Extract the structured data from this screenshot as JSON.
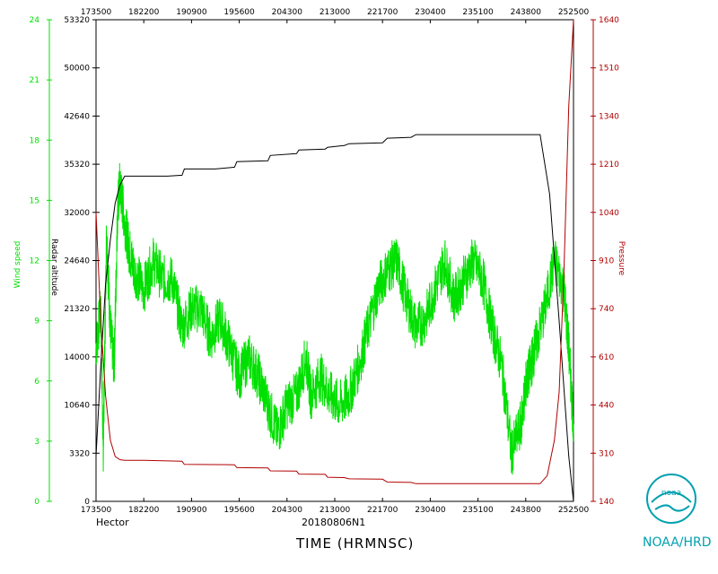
{
  "storm_name": "Hector",
  "storm_id": "20180806N1",
  "xlabel": "TIME (HRMNSC)",
  "credit": "NOAA/HRD",
  "logo_text": "noaa",
  "colors": {
    "wind": "#00e000",
    "altitude": "#000000",
    "pressure": "#b00000",
    "axis": "#000000"
  },
  "chart_data": {
    "type": "line",
    "grid": false,
    "x": {
      "ticks": [
        "173500",
        "182200",
        "190900",
        "195600",
        "204300",
        "213000",
        "221700",
        "230400",
        "235100",
        "243800",
        "252500"
      ],
      "range": [
        0,
        10
      ]
    },
    "axes": {
      "wind": {
        "label": "Wind speed",
        "range": [
          0,
          25
        ],
        "ticks": [
          "0",
          "3",
          "6",
          "9",
          "12",
          "15",
          "18",
          "21",
          "24"
        ]
      },
      "altitude": {
        "label": "Radar altitude",
        "range": [
          0,
          53320
        ],
        "ticks": [
          "0",
          "3320",
          "10640",
          "14000",
          "21320",
          "24640",
          "32000",
          "35320",
          "42640",
          "50000",
          "53320"
        ]
      },
      "pressure": {
        "label": "Pressure",
        "range": [
          140,
          1640
        ],
        "ticks": [
          "140",
          "310",
          "440",
          "610",
          "740",
          "910",
          "1040",
          "1210",
          "1340",
          "1510",
          "1640"
        ]
      }
    },
    "series": [
      {
        "name": "Wind speed",
        "axis": "wind",
        "noise": 1.3,
        "x": [
          0.0,
          0.1,
          0.15,
          0.22,
          0.3,
          0.38,
          0.45,
          0.5,
          0.6,
          0.7,
          0.8,
          1.0,
          1.2,
          1.4,
          1.6,
          1.8,
          2.0,
          2.2,
          2.4,
          2.6,
          2.8,
          3.0,
          3.2,
          3.4,
          3.6,
          3.8,
          4.0,
          4.2,
          4.4,
          4.5,
          4.7,
          4.9,
          5.1,
          5.3,
          5.5,
          5.7,
          5.9,
          6.1,
          6.3,
          6.5,
          6.7,
          6.9,
          7.1,
          7.3,
          7.5,
          7.7,
          7.9,
          8.1,
          8.3,
          8.5,
          8.7,
          8.9,
          9.0,
          9.1,
          9.2,
          9.4,
          9.6,
          9.8,
          9.9,
          10.0
        ],
        "y": [
          8.0,
          10.0,
          2.5,
          14.0,
          9.0,
          7.0,
          15.0,
          16.5,
          14.5,
          13.0,
          12.0,
          11.0,
          12.5,
          11.5,
          11.5,
          9.0,
          10.0,
          10.0,
          8.5,
          9.5,
          8.0,
          6.5,
          7.5,
          6.5,
          5.0,
          3.5,
          5.0,
          5.5,
          7.5,
          5.5,
          6.5,
          5.5,
          5.0,
          5.5,
          7.0,
          9.0,
          11.0,
          12.0,
          12.5,
          10.5,
          9.0,
          9.5,
          11.0,
          12.5,
          10.5,
          11.5,
          12.5,
          11.5,
          9.0,
          7.0,
          2.5,
          4.0,
          6.0,
          7.0,
          8.0,
          10.0,
          12.5,
          11.0,
          8.0,
          4.0
        ]
      },
      {
        "name": "Radar altitude",
        "axis": "altitude",
        "noise": 0,
        "x": [
          0.0,
          0.1,
          0.2,
          0.3,
          0.4,
          0.5,
          0.6,
          1.0,
          1.5,
          1.8,
          1.85,
          2.5,
          2.9,
          2.95,
          3.6,
          3.65,
          4.2,
          4.25,
          4.8,
          4.85,
          5.2,
          5.3,
          6.0,
          6.1,
          6.6,
          6.7,
          9.3,
          9.5,
          9.7,
          9.9,
          10.0
        ],
        "y": [
          5000,
          15000,
          24000,
          29000,
          33000,
          35000,
          36000,
          36000,
          36000,
          36100,
          36800,
          36800,
          37000,
          37600,
          37700,
          38300,
          38500,
          38900,
          39000,
          39200,
          39400,
          39600,
          39700,
          40200,
          40300,
          40600,
          40600,
          34000,
          20000,
          5000,
          0
        ]
      },
      {
        "name": "Pressure",
        "axis": "pressure",
        "noise": 0,
        "x": [
          0.0,
          0.1,
          0.2,
          0.3,
          0.4,
          0.5,
          0.6,
          1.0,
          1.5,
          1.8,
          1.85,
          2.9,
          2.95,
          3.6,
          3.65,
          4.2,
          4.25,
          4.8,
          4.85,
          5.2,
          5.3,
          6.0,
          6.1,
          6.6,
          6.7,
          9.3,
          9.45,
          9.6,
          9.7,
          9.8,
          9.9,
          10.0
        ],
        "y": [
          1040,
          700,
          470,
          330,
          280,
          270,
          268,
          268,
          266,
          265,
          255,
          254,
          245,
          244,
          235,
          234,
          225,
          224,
          215,
          214,
          210,
          209,
          200,
          199,
          195,
          195,
          220,
          330,
          480,
          860,
          1370,
          1640
        ]
      }
    ]
  }
}
